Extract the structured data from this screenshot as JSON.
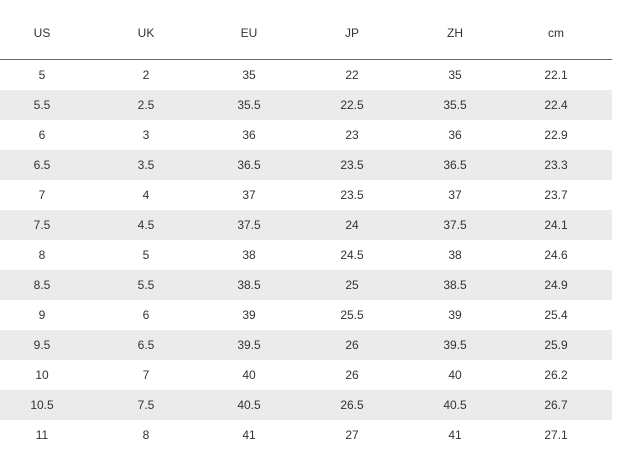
{
  "table": {
    "headers": [
      "US",
      "UK",
      "EU",
      "JP",
      "ZH",
      "cm"
    ],
    "rows": [
      [
        "5",
        "2",
        "35",
        "22",
        "35",
        "22.1"
      ],
      [
        "5.5",
        "2.5",
        "35.5",
        "22.5",
        "35.5",
        "22.4"
      ],
      [
        "6",
        "3",
        "36",
        "23",
        "36",
        "22.9"
      ],
      [
        "6.5",
        "3.5",
        "36.5",
        "23.5",
        "36.5",
        "23.3"
      ],
      [
        "7",
        "4",
        "37",
        "23.5",
        "37",
        "23.7"
      ],
      [
        "7.5",
        "4.5",
        "37.5",
        "24",
        "37.5",
        "24.1"
      ],
      [
        "8",
        "5",
        "38",
        "24.5",
        "38",
        "24.6"
      ],
      [
        "8.5",
        "5.5",
        "38.5",
        "25",
        "38.5",
        "24.9"
      ],
      [
        "9",
        "6",
        "39",
        "25.5",
        "39",
        "25.4"
      ],
      [
        "9.5",
        "6.5",
        "39.5",
        "26",
        "39.5",
        "25.9"
      ],
      [
        "10",
        "7",
        "40",
        "26",
        "40",
        "26.2"
      ],
      [
        "10.5",
        "7.5",
        "40.5",
        "26.5",
        "40.5",
        "26.7"
      ],
      [
        "11",
        "8",
        "41",
        "27",
        "41",
        "27.1"
      ]
    ]
  }
}
